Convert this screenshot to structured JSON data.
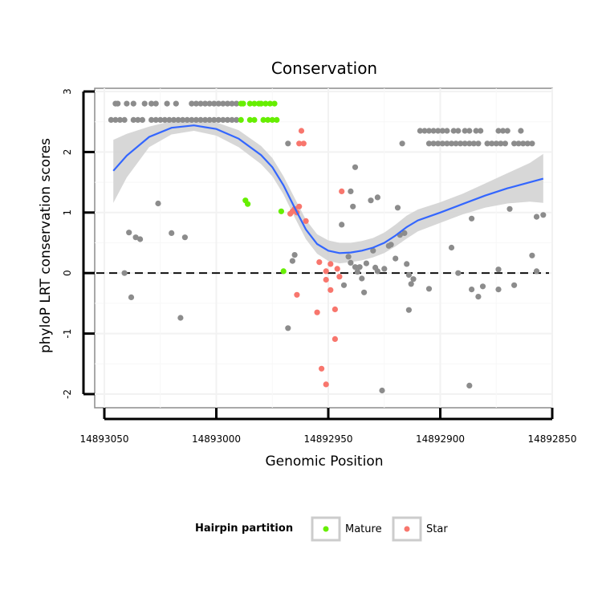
{
  "chart_data": {
    "type": "scatter",
    "title": "Conservation",
    "xlabel": "Genomic Position",
    "ylabel": "phyloP LRT conservation scores",
    "xlim": [
      14893050,
      14892850
    ],
    "x_reversed": true,
    "ylim": [
      -2,
      3
    ],
    "x_ticks": [
      14893050,
      14893000,
      14892950,
      14892900,
      14892850
    ],
    "x_tick_labels": [
      "14893050",
      "14893000",
      "14892950",
      "14892900",
      "14892850"
    ],
    "y_ticks": [
      -2,
      -1,
      0,
      1,
      2,
      3
    ],
    "y_tick_labels": [
      "-2",
      "-1",
      "0",
      "1",
      "2",
      "3"
    ],
    "reference_line": {
      "y": 0,
      "style": "dashed"
    },
    "grid": true,
    "legend": {
      "title": "Hairpin partition",
      "placement": "bottom",
      "entries": [
        {
          "label": "Mature",
          "color": "#66ee00"
        },
        {
          "label": "Star",
          "color": "#f8766d"
        }
      ]
    },
    "colors": {
      "other": "#8c8c8c",
      "Mature": "#66ee00",
      "Star": "#f8766d",
      "smooth": "#3366ff",
      "ribbon": "#d3d3d3"
    },
    "series": [
      {
        "name": "Other",
        "points": [
          [
            14893045,
            2.8
          ],
          [
            14893044,
            2.8
          ],
          [
            14893040,
            2.8
          ],
          [
            14893037,
            2.8
          ],
          [
            14893032,
            2.8
          ],
          [
            14893029,
            2.8
          ],
          [
            14893027,
            2.8
          ],
          [
            14893022,
            2.8
          ],
          [
            14893018,
            2.8
          ],
          [
            14893011,
            2.8
          ],
          [
            14893009,
            2.8
          ],
          [
            14893007,
            2.8
          ],
          [
            14893005,
            2.8
          ],
          [
            14893003,
            2.8
          ],
          [
            14893001,
            2.8
          ],
          [
            14892999,
            2.8
          ],
          [
            14892997,
            2.8
          ],
          [
            14892995,
            2.8
          ],
          [
            14892993,
            2.8
          ],
          [
            14892991,
            2.8
          ],
          [
            14893047,
            2.53
          ],
          [
            14893045,
            2.53
          ],
          [
            14893043,
            2.53
          ],
          [
            14893041,
            2.53
          ],
          [
            14893037,
            2.53
          ],
          [
            14893035,
            2.53
          ],
          [
            14893033,
            2.53
          ],
          [
            14893029,
            2.53
          ],
          [
            14893027,
            2.53
          ],
          [
            14893025,
            2.53
          ],
          [
            14893023,
            2.53
          ],
          [
            14893021,
            2.53
          ],
          [
            14893019,
            2.53
          ],
          [
            14893017,
            2.53
          ],
          [
            14893015,
            2.53
          ],
          [
            14893013,
            2.53
          ],
          [
            14893011,
            2.53
          ],
          [
            14893009,
            2.53
          ],
          [
            14893007,
            2.53
          ],
          [
            14893005,
            2.53
          ],
          [
            14893003,
            2.53
          ],
          [
            14893001,
            2.53
          ],
          [
            14892999,
            2.53
          ],
          [
            14892997,
            2.53
          ],
          [
            14892995,
            2.53
          ],
          [
            14892993,
            2.53
          ],
          [
            14892991,
            2.53
          ],
          [
            14892909,
            2.35
          ],
          [
            14892907,
            2.35
          ],
          [
            14892905,
            2.35
          ],
          [
            14892903,
            2.35
          ],
          [
            14892901,
            2.35
          ],
          [
            14892899,
            2.35
          ],
          [
            14892897,
            2.35
          ],
          [
            14892894,
            2.35
          ],
          [
            14892892,
            2.35
          ],
          [
            14892889,
            2.35
          ],
          [
            14892887,
            2.35
          ],
          [
            14892884,
            2.35
          ],
          [
            14892882,
            2.35
          ],
          [
            14892874,
            2.35
          ],
          [
            14892872,
            2.35
          ],
          [
            14892870,
            2.35
          ],
          [
            14892864,
            2.35
          ],
          [
            14892917,
            2.14
          ],
          [
            14892905,
            2.14
          ],
          [
            14892903,
            2.14
          ],
          [
            14892901,
            2.14
          ],
          [
            14892899,
            2.14
          ],
          [
            14892897,
            2.14
          ],
          [
            14892895,
            2.14
          ],
          [
            14892893,
            2.14
          ],
          [
            14892891,
            2.14
          ],
          [
            14892889,
            2.14
          ],
          [
            14892887,
            2.14
          ],
          [
            14892885,
            2.14
          ],
          [
            14892883,
            2.14
          ],
          [
            14892879,
            2.14
          ],
          [
            14892877,
            2.14
          ],
          [
            14892875,
            2.14
          ],
          [
            14892873,
            2.14
          ],
          [
            14892871,
            2.14
          ],
          [
            14892867,
            2.14
          ],
          [
            14892865,
            2.14
          ],
          [
            14892863,
            2.14
          ],
          [
            14892861,
            2.14
          ],
          [
            14892859,
            2.14
          ],
          [
            14892968,
            2.14
          ],
          [
            14892938,
            1.75
          ],
          [
            14892940,
            1.35
          ],
          [
            14892931,
            1.2
          ],
          [
            14892928,
            1.25
          ],
          [
            14892939,
            1.1
          ],
          [
            14892919,
            1.08
          ],
          [
            14892895,
            0.42
          ],
          [
            14892886,
            0.9
          ],
          [
            14892869,
            1.06
          ],
          [
            14892857,
            0.93
          ],
          [
            14892854,
            0.96
          ],
          [
            14893041,
            0.0
          ],
          [
            14893039,
            0.67
          ],
          [
            14893036,
            0.59
          ],
          [
            14893034,
            0.56
          ],
          [
            14893026,
            1.15
          ],
          [
            14893020,
            0.66
          ],
          [
            14893014,
            0.59
          ],
          [
            14893038,
            -0.4
          ],
          [
            14893016,
            -0.74
          ],
          [
            14892965,
            0.3
          ],
          [
            14892966,
            0.2
          ],
          [
            14892944,
            0.8
          ],
          [
            14892943,
            -0.2
          ],
          [
            14892941,
            0.27
          ],
          [
            14892940,
            0.17
          ],
          [
            14892938,
            0.1
          ],
          [
            14892936,
            0.1
          ],
          [
            14892937,
            0.02
          ],
          [
            14892935,
            -0.09
          ],
          [
            14892934,
            -0.32
          ],
          [
            14892933,
            0.16
          ],
          [
            14892930,
            0.37
          ],
          [
            14892929,
            0.09
          ],
          [
            14892928,
            0.03
          ],
          [
            14892925,
            0.07
          ],
          [
            14892923,
            0.45
          ],
          [
            14892922,
            0.47
          ],
          [
            14892920,
            0.24
          ],
          [
            14892916,
            0.66
          ],
          [
            14892918,
            0.63
          ],
          [
            14892915,
            0.15
          ],
          [
            14892914,
            -0.03
          ],
          [
            14892913,
            -0.18
          ],
          [
            14892914,
            -0.61
          ],
          [
            14892912,
            -0.1
          ],
          [
            14892905,
            -0.26
          ],
          [
            14892892,
            0.0
          ],
          [
            14892886,
            -0.27
          ],
          [
            14892883,
            -0.39
          ],
          [
            14892881,
            -0.22
          ],
          [
            14892874,
            -0.27
          ],
          [
            14892874,
            0.06
          ],
          [
            14892867,
            -0.2
          ],
          [
            14892859,
            0.29
          ],
          [
            14892857,
            0.03
          ],
          [
            14892968,
            -0.91
          ],
          [
            14892926,
            -1.94
          ],
          [
            14892887,
            -1.86
          ]
        ]
      },
      {
        "name": "Mature",
        "points": [
          [
            14892989,
            2.8
          ],
          [
            14892988,
            2.8
          ],
          [
            14892985,
            2.8
          ],
          [
            14892983,
            2.8
          ],
          [
            14892981,
            2.8
          ],
          [
            14892980,
            2.8
          ],
          [
            14892978,
            2.8
          ],
          [
            14892976,
            2.8
          ],
          [
            14892974,
            2.8
          ],
          [
            14892989,
            2.53
          ],
          [
            14892985,
            2.53
          ],
          [
            14892983,
            2.53
          ],
          [
            14892979,
            2.53
          ],
          [
            14892977,
            2.53
          ],
          [
            14892975,
            2.53
          ],
          [
            14892973,
            2.53
          ],
          [
            14892987,
            1.2
          ],
          [
            14892986,
            1.14
          ],
          [
            14892971,
            1.02
          ],
          [
            14892970,
            0.03
          ]
        ]
      },
      {
        "name": "Star",
        "points": [
          [
            14892962,
            2.35
          ],
          [
            14892963,
            2.14
          ],
          [
            14892961,
            2.14
          ],
          [
            14892944,
            1.35
          ],
          [
            14892963,
            1.1
          ],
          [
            14892965,
            1.06
          ],
          [
            14892966,
            1.02
          ],
          [
            14892964,
            1.0
          ],
          [
            14892967,
            0.98
          ],
          [
            14892960,
            0.86
          ],
          [
            14892954,
            0.18
          ],
          [
            14892949,
            0.15
          ],
          [
            14892951,
            0.03
          ],
          [
            14892946,
            0.07
          ],
          [
            14892945,
            -0.06
          ],
          [
            14892951,
            -0.11
          ],
          [
            14892949,
            -0.28
          ],
          [
            14892947,
            -0.6
          ],
          [
            14892955,
            -0.65
          ],
          [
            14892964,
            -0.36
          ],
          [
            14892947,
            -1.09
          ],
          [
            14892953,
            -1.58
          ],
          [
            14892951,
            -1.84
          ]
        ]
      }
    ],
    "smooth": {
      "method": "loess",
      "x": [
        14893046,
        14893040,
        14893030,
        14893020,
        14893010,
        14893000,
        14892990,
        14892980,
        14892975,
        14892970,
        14892965,
        14892960,
        14892955,
        14892950,
        14892945,
        14892940,
        14892935,
        14892930,
        14892925,
        14892920,
        14892915,
        14892910,
        14892900,
        14892890,
        14892880,
        14892870,
        14892860,
        14892854
      ],
      "y": [
        1.69,
        1.94,
        2.25,
        2.4,
        2.44,
        2.38,
        2.22,
        1.95,
        1.75,
        1.45,
        1.08,
        0.72,
        0.48,
        0.37,
        0.33,
        0.34,
        0.37,
        0.42,
        0.5,
        0.62,
        0.76,
        0.87,
        1.0,
        1.14,
        1.28,
        1.4,
        1.5,
        1.56
      ],
      "lower": [
        1.16,
        1.58,
        2.08,
        2.29,
        2.35,
        2.27,
        2.08,
        1.8,
        1.6,
        1.3,
        0.92,
        0.56,
        0.32,
        0.2,
        0.16,
        0.18,
        0.21,
        0.26,
        0.33,
        0.44,
        0.57,
        0.69,
        0.83,
        0.97,
        1.08,
        1.15,
        1.18,
        1.16
      ],
      "upper": [
        2.2,
        2.3,
        2.42,
        2.51,
        2.53,
        2.49,
        2.36,
        2.1,
        1.9,
        1.6,
        1.24,
        0.88,
        0.64,
        0.54,
        0.5,
        0.5,
        0.53,
        0.58,
        0.67,
        0.8,
        0.95,
        1.05,
        1.17,
        1.31,
        1.48,
        1.65,
        1.82,
        1.97
      ]
    }
  }
}
